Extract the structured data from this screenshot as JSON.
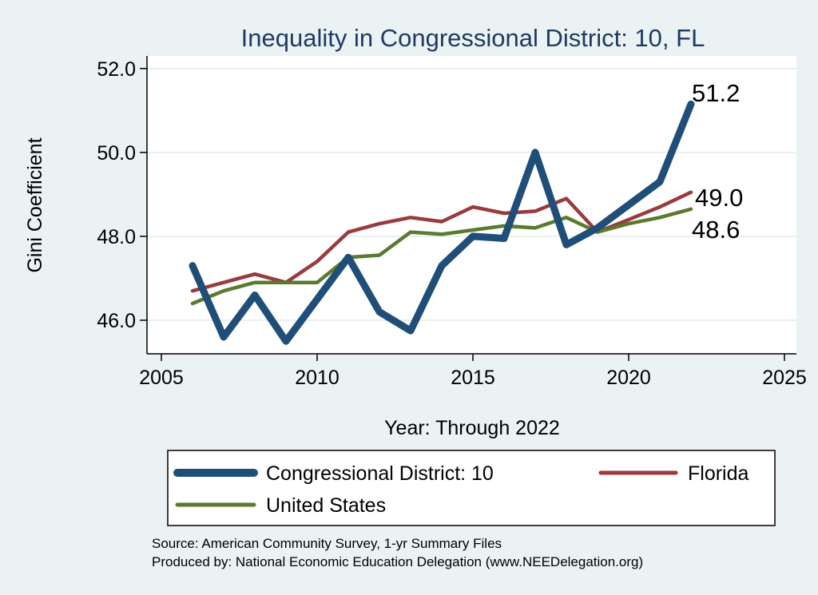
{
  "chart_data": {
    "type": "line",
    "title": "Inequality in Congressional District:  10, FL",
    "xlabel": "Year: Through 2022",
    "ylabel": "Gini Coefficient",
    "xlim": [
      2005,
      2025
    ],
    "ylim": [
      45.2,
      52.3
    ],
    "xticks": [
      2005,
      2010,
      2015,
      2020,
      2025
    ],
    "xtick_labels": [
      "2005",
      "2010",
      "2015",
      "2020",
      "2025"
    ],
    "yticks": [
      46,
      48,
      50,
      52
    ],
    "ytick_labels": [
      "46.0",
      "48.0",
      "50.0",
      "52.0"
    ],
    "grid": true,
    "series": [
      {
        "name": "Congressional District:  10",
        "color": "#1f4e79",
        "width": "thick",
        "x": [
          2006,
          2007,
          2008,
          2009,
          2010,
          2011,
          2012,
          2013,
          2014,
          2015,
          2016,
          2017,
          2018,
          2019,
          2020,
          2021,
          2022
        ],
        "values": [
          47.3,
          45.6,
          46.6,
          45.5,
          46.5,
          47.5,
          46.2,
          45.75,
          47.3,
          48.0,
          47.95,
          50.0,
          47.8,
          48.2,
          48.75,
          49.3,
          51.15
        ],
        "end_label": "51.2"
      },
      {
        "name": "Florida",
        "color": "#9a3a3f",
        "width": "medium",
        "x": [
          2006,
          2007,
          2008,
          2009,
          2010,
          2011,
          2012,
          2013,
          2014,
          2015,
          2016,
          2017,
          2018,
          2019,
          2020,
          2021,
          2022
        ],
        "values": [
          46.7,
          46.9,
          47.1,
          46.9,
          47.4,
          48.1,
          48.3,
          48.45,
          48.35,
          48.7,
          48.55,
          48.6,
          48.9,
          48.1,
          48.4,
          48.7,
          49.05
        ],
        "end_label": "49.0"
      },
      {
        "name": "United States",
        "color": "#5a7a2e",
        "width": "medium",
        "x": [
          2006,
          2007,
          2008,
          2009,
          2010,
          2011,
          2012,
          2013,
          2014,
          2015,
          2016,
          2017,
          2018,
          2019,
          2020,
          2021,
          2022
        ],
        "values": [
          46.4,
          46.7,
          46.9,
          46.9,
          46.9,
          47.5,
          47.55,
          48.1,
          48.05,
          48.15,
          48.25,
          48.2,
          48.45,
          48.1,
          48.3,
          48.45,
          48.65
        ],
        "end_label": "48.6"
      }
    ],
    "legend": {
      "placement": "bottom",
      "entries": [
        "Congressional District:  10",
        "Florida",
        "United States"
      ]
    },
    "notes": [
      "Source: American Community Survey, 1-yr Summary Files",
      "Produced by: National Economic Education Delegation (www.NEEDelegation.org)"
    ]
  }
}
